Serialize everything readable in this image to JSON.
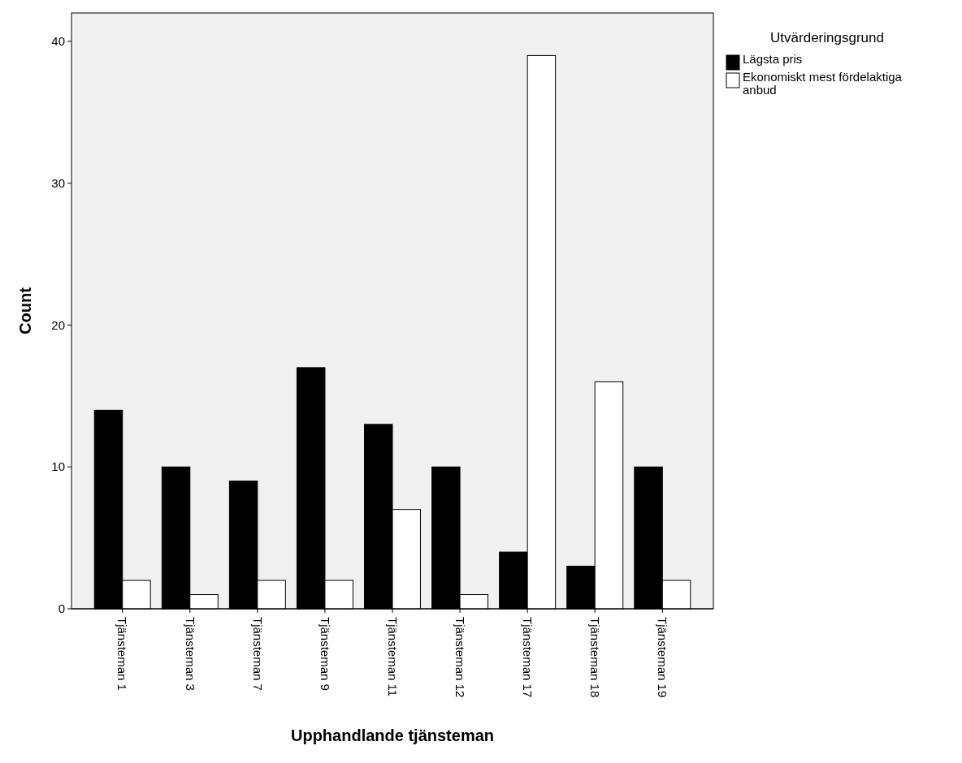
{
  "chart_data": {
    "type": "bar",
    "xlabel": "Upphandlande tjänsteman",
    "ylabel": "Count",
    "legend_title": "Utvärderingsgrund",
    "categories": [
      "Tjänsteman 1",
      "Tjänsteman 3",
      "Tjänsteman 7",
      "Tjänsteman 9",
      "Tjänsteman 11",
      "Tjänsteman 12",
      "Tjänsteman 17",
      "Tjänsteman 18",
      "Tjänsteman 19"
    ],
    "series": [
      {
        "name": "Lägsta pris",
        "color": "#000000",
        "values": [
          14,
          10,
          9,
          17,
          13,
          10,
          4,
          3,
          10
        ]
      },
      {
        "name": "Ekonomiskt mest fördelaktiga anbud",
        "color": "#ffffff",
        "values": [
          2,
          1,
          2,
          2,
          7,
          1,
          39,
          16,
          2
        ]
      }
    ],
    "ylim": [
      0,
      42
    ],
    "yticks": [
      0,
      10,
      20,
      30,
      40
    ],
    "grid": false,
    "legend": "top right"
  }
}
